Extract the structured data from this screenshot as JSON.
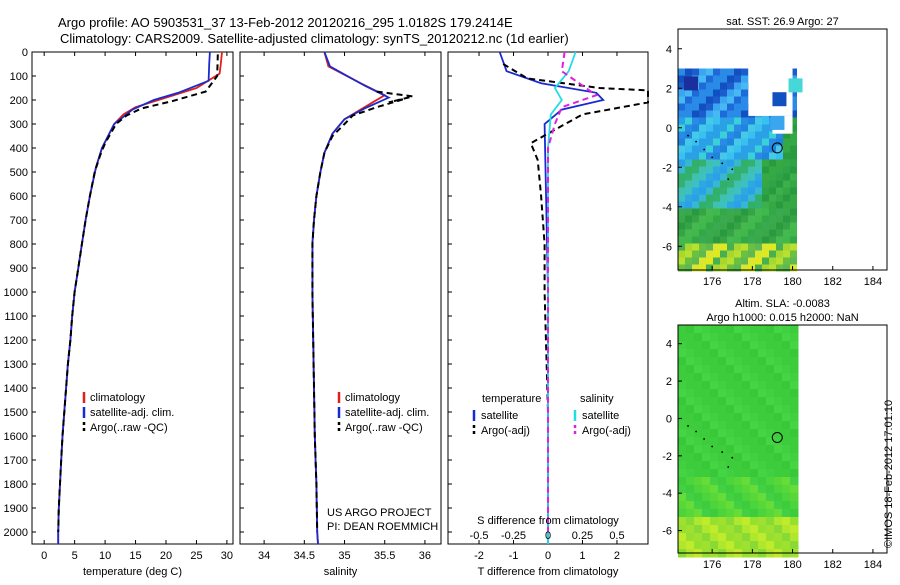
{
  "header": {
    "line1": "Argo profile: AO 5903531_37 13-Feb-2012 20120216_295 1.0182S 179.2414E",
    "line2": "Climatology: CARS2009. Satellite-adjusted climatology: synTS_20120212.nc (1d earlier)"
  },
  "side_stamp": "©IMOS 18-Feb-2012 17:01:10",
  "credits": {
    "line1": "US ARGO PROJECT",
    "line2": "PI: DEAN ROEMMICH"
  },
  "colors": {
    "climatology": "#e0201a",
    "satellite": "#1a2ad0",
    "argo": "#000000",
    "sal_satellite": "#22dde6",
    "sal_argo": "#e020e0"
  },
  "chart_data": [
    {
      "type": "line",
      "xlabel": "temperature (deg C)",
      "ylabel": "",
      "xlim": [
        -2,
        31
      ],
      "ylim": [
        2050,
        0
      ],
      "xticks": [
        0,
        5,
        10,
        15,
        20,
        25,
        30
      ],
      "yticks": [
        0,
        100,
        200,
        300,
        400,
        500,
        600,
        700,
        800,
        900,
        1000,
        1100,
        1200,
        1300,
        1400,
        1500,
        1600,
        1700,
        1800,
        1900,
        2000
      ],
      "legend": [
        "climatology",
        "satellite-adj. clim.",
        "Argo(..raw -QC)"
      ],
      "series": [
        {
          "name": "climatology",
          "style": "solid",
          "color": "#e0201a",
          "points": [
            [
              29.2,
              0
            ],
            [
              29.0,
              50
            ],
            [
              28.8,
              90
            ],
            [
              25,
              150
            ],
            [
              20,
              190
            ],
            [
              15,
              230
            ],
            [
              13,
              260
            ],
            [
              11.5,
              300
            ],
            [
              9.5,
              400
            ],
            [
              8.5,
              480
            ],
            [
              7.5,
              600
            ],
            [
              6.8,
              700
            ],
            [
              6.2,
              800
            ],
            [
              5.6,
              900
            ],
            [
              5.0,
              1000
            ],
            [
              4.6,
              1100
            ],
            [
              4.3,
              1200
            ],
            [
              3.9,
              1300
            ],
            [
              3.6,
              1400
            ],
            [
              3.3,
              1500
            ],
            [
              3.0,
              1600
            ],
            [
              2.8,
              1700
            ],
            [
              2.6,
              1800
            ],
            [
              2.4,
              1900
            ],
            [
              2.3,
              2000
            ],
            [
              2.3,
              2050
            ]
          ]
        },
        {
          "name": "satellite-adj. clim.",
          "style": "solid",
          "color": "#1a2ad0",
          "points": [
            [
              27.2,
              0
            ],
            [
              27.1,
              50
            ],
            [
              27.0,
              120
            ],
            [
              22,
              170
            ],
            [
              18,
              200
            ],
            [
              14.5,
              240
            ],
            [
              13,
              270
            ],
            [
              11.5,
              300
            ],
            [
              9.5,
              400
            ],
            [
              8.5,
              480
            ],
            [
              7.5,
              600
            ],
            [
              6.8,
              700
            ],
            [
              6.2,
              800
            ],
            [
              5.6,
              900
            ],
            [
              5.0,
              1000
            ],
            [
              4.6,
              1100
            ],
            [
              4.3,
              1200
            ],
            [
              3.9,
              1300
            ],
            [
              3.6,
              1400
            ],
            [
              3.3,
              1500
            ],
            [
              3.0,
              1600
            ],
            [
              2.8,
              1700
            ],
            [
              2.6,
              1800
            ],
            [
              2.4,
              1900
            ],
            [
              2.3,
              2000
            ],
            [
              2.3,
              2050
            ]
          ]
        },
        {
          "name": "Argo(..raw -QC)",
          "style": "dashed",
          "color": "#000000",
          "points": [
            [
              28.5,
              10
            ],
            [
              28.4,
              100
            ],
            [
              26.5,
              165
            ],
            [
              21,
              205
            ],
            [
              16,
              235
            ],
            [
              13.5,
              265
            ],
            [
              11.8,
              300
            ],
            [
              10,
              380
            ],
            [
              9.2,
              430
            ],
            [
              8.3,
              500
            ],
            [
              7.5,
              600
            ],
            [
              6.8,
              700
            ],
            [
              6.2,
              800
            ],
            [
              5.6,
              900
            ],
            [
              5.0,
              1000
            ],
            [
              4.6,
              1100
            ],
            [
              4.3,
              1200
            ],
            [
              3.9,
              1300
            ],
            [
              3.6,
              1400
            ],
            [
              3.3,
              1500
            ],
            [
              3.0,
              1600
            ],
            [
              2.8,
              1700
            ],
            [
              2.6,
              1800
            ],
            [
              2.4,
              1900
            ],
            [
              2.3,
              2000
            ]
          ]
        }
      ]
    },
    {
      "type": "line",
      "xlabel": "salinity",
      "xlim": [
        33.7,
        36.2
      ],
      "ylim": [
        2050,
        0
      ],
      "xticks": [
        34,
        34.5,
        35,
        35.5,
        36
      ],
      "legend": [
        "climatology",
        "satellite-adj. clim.",
        "Argo(..raw -QC)"
      ],
      "series": [
        {
          "name": "climatology",
          "style": "solid",
          "color": "#e0201a",
          "points": [
            [
              34.75,
              0
            ],
            [
              34.8,
              60
            ],
            [
              35.2,
              130
            ],
            [
              35.5,
              180
            ],
            [
              35.25,
              230
            ],
            [
              35.0,
              280
            ],
            [
              34.85,
              340
            ],
            [
              34.75,
              420
            ],
            [
              34.7,
              500
            ],
            [
              34.65,
              600
            ],
            [
              34.62,
              700
            ],
            [
              34.6,
              800
            ],
            [
              34.6,
              1000
            ],
            [
              34.61,
              1200
            ],
            [
              34.62,
              1400
            ],
            [
              34.63,
              1600
            ],
            [
              34.65,
              1800
            ],
            [
              34.66,
              2000
            ],
            [
              34.67,
              2050
            ]
          ]
        },
        {
          "name": "satellite-adj. clim.",
          "style": "solid",
          "color": "#1a2ad0",
          "points": [
            [
              34.75,
              0
            ],
            [
              34.82,
              60
            ],
            [
              35.25,
              140
            ],
            [
              35.55,
              190
            ],
            [
              35.25,
              235
            ],
            [
              35.0,
              280
            ],
            [
              34.85,
              340
            ],
            [
              34.75,
              420
            ],
            [
              34.7,
              500
            ],
            [
              34.65,
              600
            ],
            [
              34.62,
              700
            ],
            [
              34.6,
              800
            ],
            [
              34.6,
              1000
            ],
            [
              34.61,
              1200
            ],
            [
              34.62,
              1400
            ],
            [
              34.63,
              1600
            ],
            [
              34.65,
              1800
            ],
            [
              34.66,
              2000
            ],
            [
              34.67,
              2050
            ]
          ]
        },
        {
          "name": "Argo(..raw -QC)",
          "style": "dashed",
          "color": "#000000",
          "points": [
            [
              35.4,
              165
            ],
            [
              35.85,
              185
            ],
            [
              35.55,
              210
            ],
            [
              35.75,
              195
            ],
            [
              35.4,
              230
            ],
            [
              35.1,
              265
            ],
            [
              35.0,
              300
            ],
            [
              34.85,
              350
            ],
            [
              34.75,
              420
            ],
            [
              34.7,
              500
            ],
            [
              34.65,
              600
            ],
            [
              34.62,
              700
            ],
            [
              34.6,
              800
            ],
            [
              34.6,
              1000
            ],
            [
              34.61,
              1200
            ],
            [
              34.62,
              1400
            ],
            [
              34.63,
              1600
            ],
            [
              34.65,
              1800
            ],
            [
              34.66,
              2000
            ]
          ]
        }
      ]
    },
    {
      "type": "line",
      "xlabel": "T difference from climatology",
      "x2label": "S difference from climatology",
      "xlim": [
        -2.9,
        2.9
      ],
      "x2lim": [
        -0.725,
        0.725
      ],
      "ylim": [
        2050,
        0
      ],
      "xticks": [
        -2,
        -1,
        0,
        1,
        2
      ],
      "x2ticks": [
        -0.5,
        -0.25,
        0,
        0.25,
        0.5
      ],
      "legend_headings": [
        "temperature",
        "salinity"
      ],
      "legend": [
        "satellite",
        "Argo(-adj)",
        "satellite",
        "Argo(-adj)"
      ],
      "series": [
        {
          "name": "satellite",
          "group": "temperature",
          "style": "solid",
          "color": "#1a2ad0",
          "points": [
            [
              -1.4,
              0
            ],
            [
              -1.2,
              80
            ],
            [
              -0.2,
              130
            ],
            [
              1.4,
              170
            ],
            [
              1.6,
              200
            ],
            [
              0.4,
              240
            ],
            [
              -0.1,
              300
            ],
            [
              0,
              1000
            ],
            [
              0,
              2050
            ]
          ]
        },
        {
          "name": "Argo(-adj)",
          "group": "temperature",
          "style": "dashed",
          "color": "#000000",
          "points": [
            [
              -1.3,
              50
            ],
            [
              -0.6,
              110
            ],
            [
              1.5,
              150
            ],
            [
              2.9,
              160
            ],
            [
              2.9,
              210
            ],
            [
              1.0,
              260
            ],
            [
              0.5,
              300
            ],
            [
              -0.5,
              380
            ],
            [
              -0.3,
              450
            ],
            [
              -0.2,
              600
            ],
            [
              -0.1,
              800
            ],
            [
              -0.1,
              1000
            ],
            [
              0,
              1500
            ],
            [
              0,
              2000
            ]
          ]
        },
        {
          "name": "satellite",
          "group": "salinity",
          "style": "solid",
          "color": "#22dde6",
          "points": [
            [
              0.2,
              0
            ],
            [
              0.15,
              80
            ],
            [
              0.05,
              150
            ],
            [
              0.1,
              200
            ],
            [
              0.02,
              260
            ],
            [
              0,
              400
            ],
            [
              0,
              2050
            ]
          ]
        },
        {
          "name": "Argo(-adj)",
          "group": "salinity",
          "style": "dashed",
          "color": "#e020e0",
          "points": [
            [
              0.12,
              0
            ],
            [
              0.1,
              80
            ],
            [
              0.35,
              180
            ],
            [
              0.1,
              230
            ],
            [
              0.05,
              300
            ],
            [
              0,
              400
            ],
            [
              0,
              2000
            ]
          ]
        }
      ]
    },
    {
      "type": "heatmap",
      "title": "sat. SST: 26.9 Argo: 27",
      "xlim": [
        174.3,
        184.7
      ],
      "ylim": [
        -7.2,
        5.0
      ],
      "xticks": [
        176,
        178,
        180,
        182,
        184
      ],
      "yticks": [
        4,
        2,
        0,
        -2,
        -4,
        -6
      ],
      "float_position": [
        179.24,
        -1.02
      ]
    },
    {
      "type": "heatmap",
      "title": "Altim. SLA: -0.0083",
      "subtitle": "Argo h1000: 0.015 h2000: NaN",
      "xlim": [
        174.3,
        184.7
      ],
      "ylim": [
        -7.2,
        5.0
      ],
      "xticks": [
        176,
        178,
        180,
        182,
        184
      ],
      "yticks": [
        4,
        2,
        0,
        -2,
        -4,
        -6
      ],
      "float_position": [
        179.24,
        -1.02
      ]
    }
  ]
}
